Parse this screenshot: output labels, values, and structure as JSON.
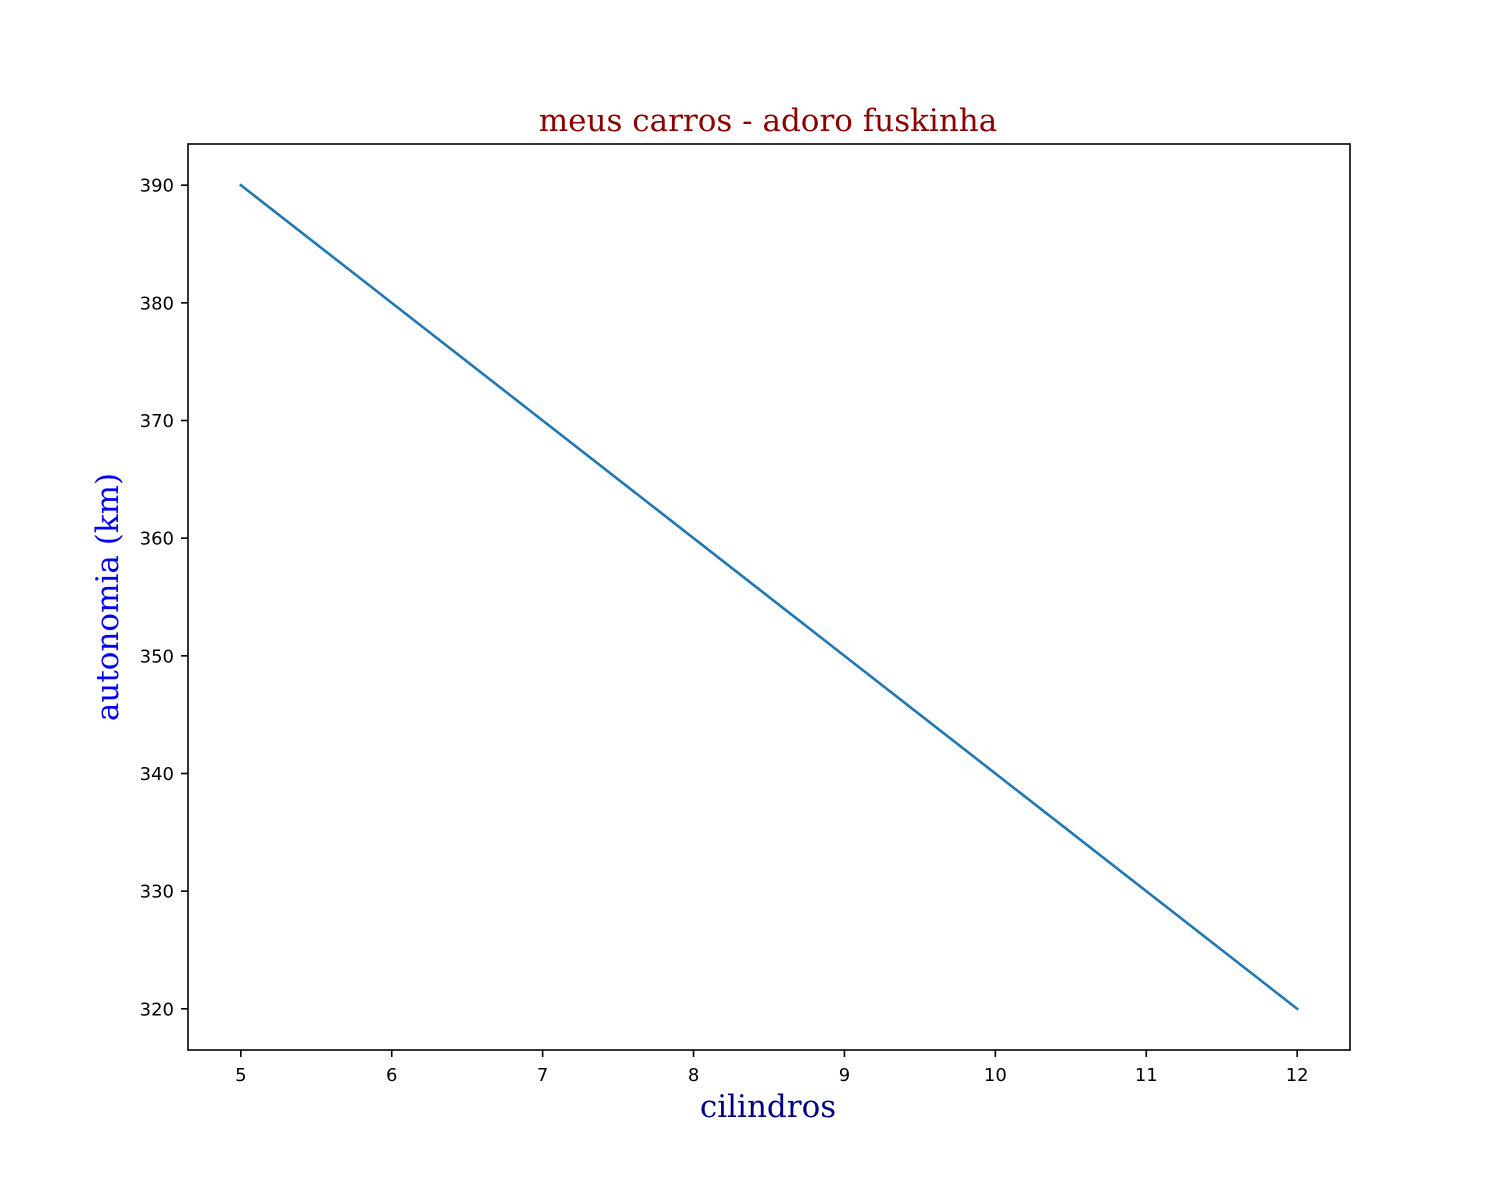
{
  "chart_data": {
    "type": "line",
    "title": "meus carros - adoro fuskinha",
    "xlabel": "cilindros",
    "ylabel": "autonomia (km)",
    "x": [
      5,
      12
    ],
    "series": [
      {
        "values": [
          390,
          320
        ]
      }
    ],
    "xlim": [
      4.65,
      12.35
    ],
    "ylim": [
      316.5,
      393.5
    ],
    "x_ticks": [
      5,
      6,
      7,
      8,
      9,
      10,
      11,
      12
    ],
    "y_ticks": [
      320,
      330,
      340,
      350,
      360,
      370,
      380,
      390
    ],
    "grid": false,
    "legend": "none"
  },
  "colors": {
    "title": "#8b0000",
    "xlabel": "#000080",
    "ylabel": "#0000ff",
    "line": "#1f77b4",
    "axes": "#000000",
    "background": "#ffffff"
  }
}
